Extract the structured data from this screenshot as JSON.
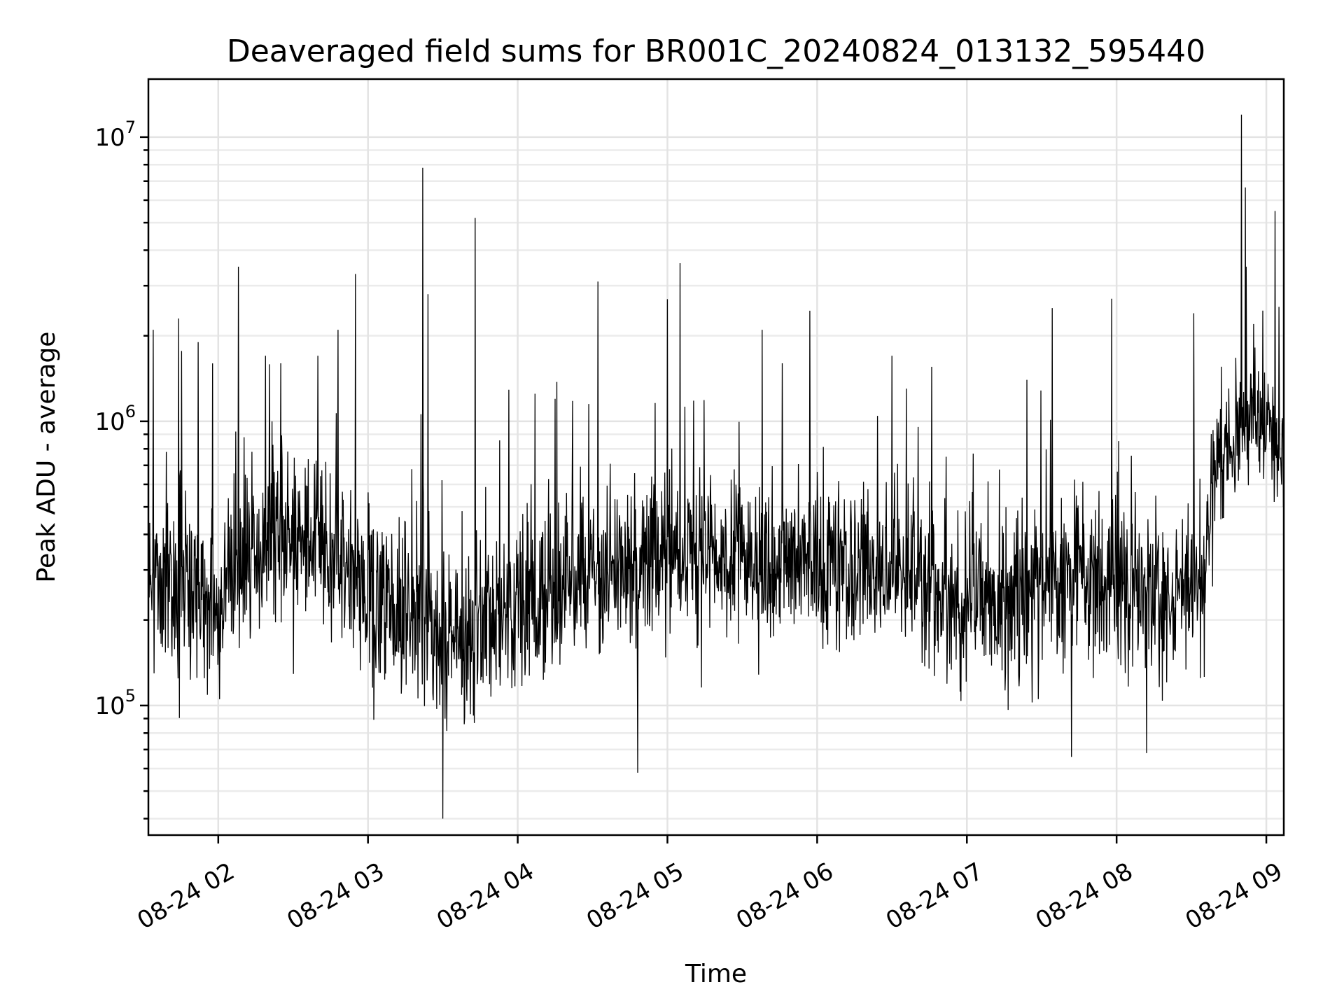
{
  "chart_data": {
    "type": "line",
    "title": "Deaveraged field sums for BR001C_20240824_013132_595440",
    "xlabel": "Time",
    "ylabel": "Peak ADU - average",
    "yscale": "log",
    "ylim": [
      35000,
      16000000
    ],
    "xlim": [
      "2024-08-24 01:32",
      "2024-08-24 09:07"
    ],
    "grid": true,
    "line_color": "#000000",
    "x_ticks": [
      {
        "value": "2024-08-24 02:00",
        "label": "08-24 02"
      },
      {
        "value": "2024-08-24 03:00",
        "label": "08-24 03"
      },
      {
        "value": "2024-08-24 04:00",
        "label": "08-24 04"
      },
      {
        "value": "2024-08-24 05:00",
        "label": "08-24 05"
      },
      {
        "value": "2024-08-24 06:00",
        "label": "08-24 06"
      },
      {
        "value": "2024-08-24 07:00",
        "label": "08-24 07"
      },
      {
        "value": "2024-08-24 08:00",
        "label": "08-24 08"
      },
      {
        "value": "2024-08-24 09:00",
        "label": "08-24 09"
      }
    ],
    "y_ticks": [
      {
        "value": 100000,
        "base": "10",
        "exp": "5"
      },
      {
        "value": 1000000,
        "base": "10",
        "exp": "6"
      },
      {
        "value": 10000000,
        "base": "10",
        "exp": "7"
      }
    ],
    "series": [
      {
        "baseline": [
          [
            "2024-08-24 01:32",
            300000
          ],
          [
            "2024-08-24 01:45",
            260000
          ],
          [
            "2024-08-24 02:00",
            230000
          ],
          [
            "2024-08-24 02:15",
            330000
          ],
          [
            "2024-08-24 02:30",
            380000
          ],
          [
            "2024-08-24 02:45",
            350000
          ],
          [
            "2024-08-24 03:00",
            240000
          ],
          [
            "2024-08-24 03:15",
            200000
          ],
          [
            "2024-08-24 03:30",
            170000
          ],
          [
            "2024-08-24 03:45",
            190000
          ],
          [
            "2024-08-24 04:00",
            210000
          ],
          [
            "2024-08-24 04:20",
            270000
          ],
          [
            "2024-08-24 04:40",
            300000
          ],
          [
            "2024-08-24 05:00",
            330000
          ],
          [
            "2024-08-24 05:30",
            320000
          ],
          [
            "2024-08-24 06:00",
            330000
          ],
          [
            "2024-08-24 06:30",
            300000
          ],
          [
            "2024-08-24 07:00",
            220000
          ],
          [
            "2024-08-24 07:20",
            230000
          ],
          [
            "2024-08-24 07:40",
            280000
          ],
          [
            "2024-08-24 08:00",
            260000
          ],
          [
            "2024-08-24 08:20",
            220000
          ],
          [
            "2024-08-24 08:35",
            280000
          ],
          [
            "2024-08-24 08:40",
            700000
          ],
          [
            "2024-08-24 08:50",
            1000000
          ],
          [
            "2024-08-24 09:00",
            1000000
          ],
          [
            "2024-08-24 09:07",
            850000
          ]
        ],
        "spikes": [
          [
            "2024-08-24 01:34",
            2100000
          ],
          [
            "2024-08-24 01:44",
            2300000
          ],
          [
            "2024-08-24 01:52",
            1900000
          ],
          [
            "2024-08-24 02:08",
            3500000
          ],
          [
            "2024-08-24 02:19",
            1700000
          ],
          [
            "2024-08-24 02:25",
            1600000
          ],
          [
            "2024-08-24 02:40",
            1700000
          ],
          [
            "2024-08-24 02:48",
            2100000
          ],
          [
            "2024-08-24 02:55",
            3300000
          ],
          [
            "2024-08-24 03:22",
            7800000
          ],
          [
            "2024-08-24 03:24",
            2800000
          ],
          [
            "2024-08-24 03:30",
            40000
          ],
          [
            "2024-08-24 03:43",
            5200000
          ],
          [
            "2024-08-24 04:07",
            1250000
          ],
          [
            "2024-08-24 04:15",
            1200000
          ],
          [
            "2024-08-24 04:22",
            1180000
          ],
          [
            "2024-08-24 04:48",
            58000
          ],
          [
            "2024-08-24 05:05",
            3600000
          ],
          [
            "2024-08-24 05:38",
            2100000
          ],
          [
            "2024-08-24 05:46",
            1600000
          ],
          [
            "2024-08-24 05:57",
            2450000
          ],
          [
            "2024-08-24 06:30",
            1700000
          ],
          [
            "2024-08-24 07:24",
            1400000
          ],
          [
            "2024-08-24 07:42",
            66000
          ],
          [
            "2024-08-24 07:58",
            2700000
          ],
          [
            "2024-08-24 08:12",
            68000
          ],
          [
            "2024-08-24 08:31",
            2400000
          ],
          [
            "2024-08-24 08:50",
            12000000
          ],
          [
            "2024-08-24 08:52",
            3500000
          ],
          [
            "2024-08-24 08:55",
            2200000
          ]
        ]
      }
    ]
  }
}
